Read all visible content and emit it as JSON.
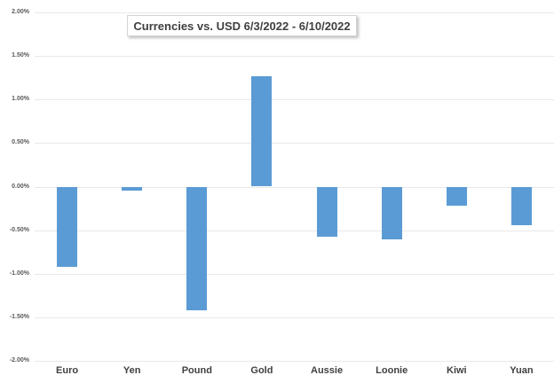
{
  "chart_data": {
    "type": "bar",
    "title": "Currencies vs. USD 6/3/2022 - 6/10/2022",
    "categories": [
      "Euro",
      "Yen",
      "Pound",
      "Gold",
      "Aussie",
      "Loonie",
      "Kiwi",
      "Yuan"
    ],
    "values": [
      -0.92,
      -0.05,
      -1.42,
      1.27,
      -0.57,
      -0.61,
      -0.22,
      -0.44
    ],
    "value_unit": "percent",
    "xlabel": "",
    "ylabel": "",
    "ylim": [
      -2.0,
      2.0
    ],
    "ytick_step": 0.5,
    "yticks": [
      {
        "value": 2.0,
        "label": "2.00%"
      },
      {
        "value": 1.5,
        "label": "1.50%"
      },
      {
        "value": 1.0,
        "label": "1.00%"
      },
      {
        "value": 0.5,
        "label": "0.50%"
      },
      {
        "value": 0.0,
        "label": "0.00%"
      },
      {
        "value": -0.5,
        "label": "-0.50%"
      },
      {
        "value": -1.0,
        "label": "-1.00%"
      },
      {
        "value": -1.5,
        "label": "-1.50%"
      },
      {
        "value": -2.0,
        "label": "-2.00%"
      }
    ],
    "grid": true,
    "legend": false,
    "bar_color": "#5B9BD5",
    "gridline_color": "#E8E8E8",
    "background_color": "#FFFFFF",
    "title_color": "#404040",
    "tick_label_color": "#595959",
    "category_label_color": "#404040"
  }
}
